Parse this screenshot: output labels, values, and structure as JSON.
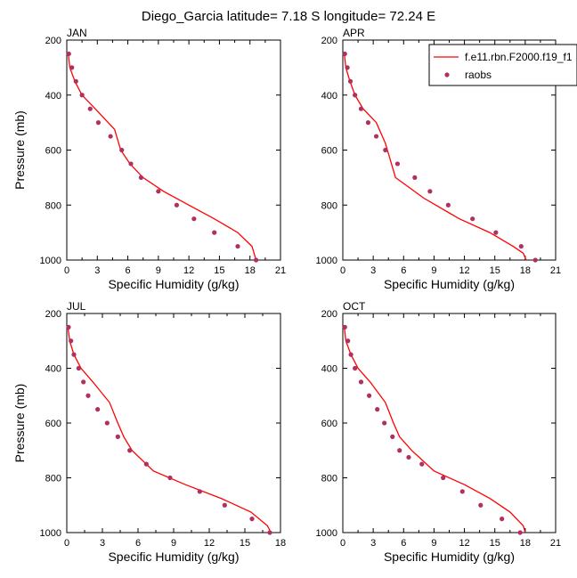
{
  "title": "Diego_Garcia  latitude= 7.18 S longitude= 72.24 E",
  "legend": {
    "model_label": "f.e11.rbn.F2000.f19_f1",
    "obs_label": "raobs"
  },
  "colors": {
    "model": "#ff0000",
    "obs": "#b03060",
    "axis": "#000000"
  },
  "chart_data": [
    {
      "type": "line",
      "panel": "JAN",
      "xlabel": "Specific Humidity (g/kg)",
      "ylabel": "Pressure (mb)",
      "xlim": [
        0,
        21
      ],
      "xticks": [
        0,
        3,
        6,
        9,
        12,
        15,
        18,
        21
      ],
      "ylim": [
        1000,
        200
      ],
      "yticks": [
        200,
        400,
        600,
        800,
        1000
      ],
      "y_axis": "reversed",
      "legend": false,
      "model": {
        "x": [
          0.15,
          0.3,
          0.8,
          1.5,
          2.8,
          4.7,
          5.3,
          6.2,
          7.5,
          9.5,
          12.0,
          14.5,
          16.8,
          18.2,
          18.6
        ],
        "y": [
          250,
          300,
          350,
          400,
          450,
          525,
          600,
          650,
          700,
          750,
          800,
          850,
          900,
          950,
          1000
        ]
      },
      "obs": {
        "x": [
          0.2,
          0.5,
          0.9,
          1.5,
          2.3,
          3.1,
          4.3,
          5.4,
          6.3,
          7.3,
          9.0,
          10.8,
          12.5,
          14.5,
          16.8,
          18.6
        ],
        "y": [
          250,
          300,
          350,
          400,
          450,
          500,
          550,
          600,
          650,
          700,
          750,
          800,
          850,
          900,
          950,
          1000
        ]
      }
    },
    {
      "type": "line",
      "panel": "APR",
      "xlabel": "Specific Humidity (g/kg)",
      "ylabel": "",
      "xlim": [
        0,
        21
      ],
      "xticks": [
        0,
        3,
        6,
        9,
        12,
        15,
        18,
        21
      ],
      "ylim": [
        1000,
        200
      ],
      "yticks": [
        200,
        400,
        600,
        800,
        1000
      ],
      "y_axis": "reversed",
      "legend": true,
      "model": {
        "x": [
          0.15,
          0.3,
          0.7,
          1.2,
          2.0,
          3.3,
          4.2,
          5.2,
          8.0,
          11.5,
          14.5,
          16.8,
          17.8,
          18.1
        ],
        "y": [
          250,
          300,
          350,
          400,
          450,
          500,
          575,
          700,
          775,
          850,
          900,
          950,
          975,
          1000
        ]
      },
      "obs": {
        "x": [
          0.2,
          0.45,
          0.75,
          1.2,
          1.8,
          2.5,
          3.3,
          4.2,
          5.4,
          7.1,
          8.6,
          10.4,
          12.8,
          15.1,
          17.6,
          19.0
        ],
        "y": [
          250,
          300,
          350,
          400,
          450,
          500,
          550,
          600,
          650,
          700,
          750,
          800,
          850,
          900,
          950,
          1000
        ]
      }
    },
    {
      "type": "line",
      "panel": "JUL",
      "xlabel": "Specific Humidity (g/kg)",
      "ylabel": "Pressure (mb)",
      "xlim": [
        0,
        18
      ],
      "xticks": [
        0,
        3,
        6,
        9,
        12,
        15,
        18
      ],
      "ylim": [
        1000,
        200
      ],
      "yticks": [
        200,
        400,
        600,
        800,
        1000
      ],
      "y_axis": "reversed",
      "legend": false,
      "model": {
        "x": [
          0.1,
          0.25,
          0.6,
          1.2,
          2.2,
          3.6,
          4.3,
          4.8,
          5.5,
          7.3,
          10.0,
          13.0,
          15.5,
          16.9,
          17.2
        ],
        "y": [
          250,
          300,
          350,
          400,
          450,
          525,
          600,
          650,
          700,
          775,
          825,
          875,
          925,
          975,
          1000
        ]
      },
      "obs": {
        "x": [
          0.15,
          0.35,
          0.6,
          1.0,
          1.4,
          1.8,
          2.6,
          3.4,
          4.3,
          5.3,
          6.7,
          8.7,
          11.2,
          13.3,
          15.6,
          17.1
        ],
        "y": [
          250,
          300,
          350,
          400,
          450,
          500,
          550,
          600,
          650,
          700,
          750,
          800,
          850,
          900,
          950,
          1000
        ]
      }
    },
    {
      "type": "line",
      "panel": "OCT",
      "xlabel": "Specific Humidity (g/kg)",
      "ylabel": "",
      "xlim": [
        0,
        21
      ],
      "xticks": [
        0,
        3,
        6,
        9,
        12,
        15,
        18,
        21
      ],
      "ylim": [
        1000,
        200
      ],
      "yticks": [
        200,
        400,
        600,
        800,
        1000
      ],
      "y_axis": "reversed",
      "legend": false,
      "model": {
        "x": [
          0.15,
          0.3,
          0.8,
          1.5,
          2.7,
          4.2,
          5.0,
          5.6,
          6.8,
          9.0,
          12.0,
          14.5,
          16.5,
          17.8,
          18.0
        ],
        "y": [
          250,
          300,
          350,
          400,
          450,
          525,
          600,
          650,
          700,
          775,
          825,
          875,
          925,
          975,
          1000
        ]
      },
      "obs": {
        "x": [
          0.2,
          0.5,
          0.8,
          1.2,
          1.8,
          2.6,
          3.4,
          4.1,
          4.9,
          5.6,
          6.5,
          7.8,
          9.9,
          11.8,
          13.6,
          15.7,
          17.5
        ],
        "y": [
          250,
          300,
          350,
          400,
          450,
          500,
          550,
          600,
          650,
          700,
          725,
          750,
          800,
          850,
          900,
          950,
          1000
        ]
      }
    }
  ]
}
